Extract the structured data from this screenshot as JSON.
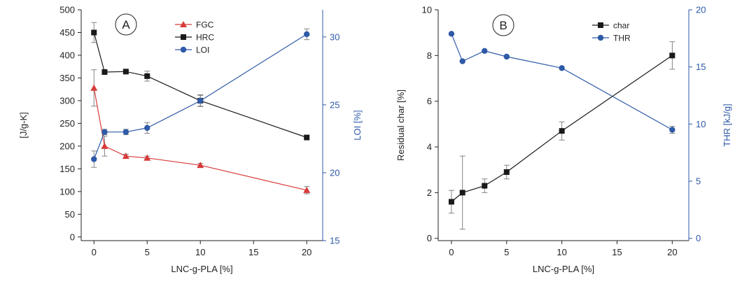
{
  "chart_data": [
    {
      "type": "line",
      "panel_label": "A",
      "xlabel": "LNC-g-PLA [%]",
      "ylabel": "[J/g-K]",
      "y2label": "LOI [%]",
      "xlim": [
        -1.2,
        21.5
      ],
      "ylim": [
        -8,
        500
      ],
      "y2lim": [
        15,
        32
      ],
      "xticks": [
        0,
        5,
        10,
        15,
        20
      ],
      "yticks": [
        0,
        50,
        100,
        150,
        200,
        250,
        300,
        350,
        400,
        450,
        500
      ],
      "y2ticks": [
        15,
        20,
        25,
        30
      ],
      "legend_position": "top-center",
      "series": [
        {
          "name": "FGC",
          "axis": "left",
          "color": "#d83a3a",
          "marker": "triangle",
          "x": [
            0,
            1,
            3,
            5,
            10,
            20
          ],
          "y": [
            328,
            200,
            178,
            174,
            158,
            103
          ],
          "err": [
            40,
            22,
            4,
            4,
            4,
            8
          ]
        },
        {
          "name": "HRC",
          "axis": "left",
          "color": "#1a1a1a",
          "marker": "square",
          "x": [
            0,
            1,
            3,
            5,
            10,
            20
          ],
          "y": [
            450,
            363,
            364,
            354,
            300,
            219
          ],
          "err": [
            22,
            4,
            5,
            11,
            13,
            4
          ]
        },
        {
          "name": "LOI",
          "axis": "right",
          "color": "#2e5aa8",
          "marker": "circle",
          "x": [
            0,
            1,
            3,
            5,
            10,
            20
          ],
          "y": [
            21.0,
            23.0,
            23.0,
            23.3,
            25.3,
            30.2
          ],
          "err": [
            0.6,
            0.2,
            0.2,
            0.4,
            0.4,
            0.4
          ]
        }
      ]
    },
    {
      "type": "line",
      "panel_label": "B",
      "xlabel": "LNC-g-PLA [%]",
      "ylabel": "Residual char [%]",
      "y2label": "THR [kJ/g]",
      "xlim": [
        -1.2,
        21.5
      ],
      "ylim": [
        -0.1,
        10
      ],
      "y2lim": [
        -0.2,
        20
      ],
      "xticks": [
        0,
        5,
        10,
        15,
        20
      ],
      "yticks": [
        0,
        2,
        4,
        6,
        8,
        10
      ],
      "y2ticks": [
        0,
        5,
        10,
        15,
        20
      ],
      "legend_position": "top-right",
      "series": [
        {
          "name": "char",
          "axis": "left",
          "color": "#1a1a1a",
          "marker": "square",
          "x": [
            0,
            1,
            3,
            5,
            10,
            20
          ],
          "y": [
            1.6,
            2.0,
            2.3,
            2.9,
            4.7,
            8.0
          ],
          "err": [
            0.5,
            1.6,
            0.3,
            0.3,
            0.4,
            0.6
          ]
        },
        {
          "name": "THR",
          "axis": "right",
          "color": "#2e5aa8",
          "marker": "circle",
          "x": [
            0,
            1,
            3,
            5,
            10,
            20
          ],
          "y": [
            17.9,
            15.5,
            16.4,
            15.9,
            14.9,
            9.5
          ],
          "err": [
            0,
            0,
            0,
            0,
            0,
            0.3
          ]
        }
      ]
    }
  ]
}
